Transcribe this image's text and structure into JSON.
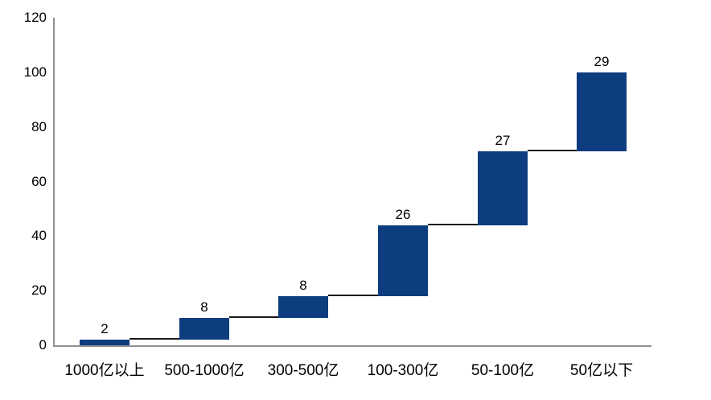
{
  "chart_data": {
    "type": "bar",
    "subtype": "waterfall",
    "title": "",
    "xlabel": "",
    "ylabel": "",
    "categories": [
      "1000亿以上",
      "500-1000亿",
      "300-500亿",
      "100-300亿",
      "50-100亿",
      "50亿以下"
    ],
    "values": [
      2,
      8,
      8,
      26,
      27,
      29
    ],
    "cumulative_start": [
      0,
      2,
      10,
      18,
      44,
      71
    ],
    "cumulative_end": [
      2,
      10,
      18,
      44,
      71,
      100
    ],
    "data_labels": [
      "2",
      "8",
      "8",
      "26",
      "27",
      "29"
    ],
    "y_ticks": [
      0,
      20,
      40,
      60,
      80,
      100,
      120
    ],
    "ylim": [
      0,
      120
    ],
    "grid": false,
    "legend": "none",
    "colors": {
      "bar": "#0d3d7f",
      "connector": "#1a1a1a",
      "axis": "#8f8f8f",
      "text": "#000000",
      "background": "#ffffff"
    }
  }
}
